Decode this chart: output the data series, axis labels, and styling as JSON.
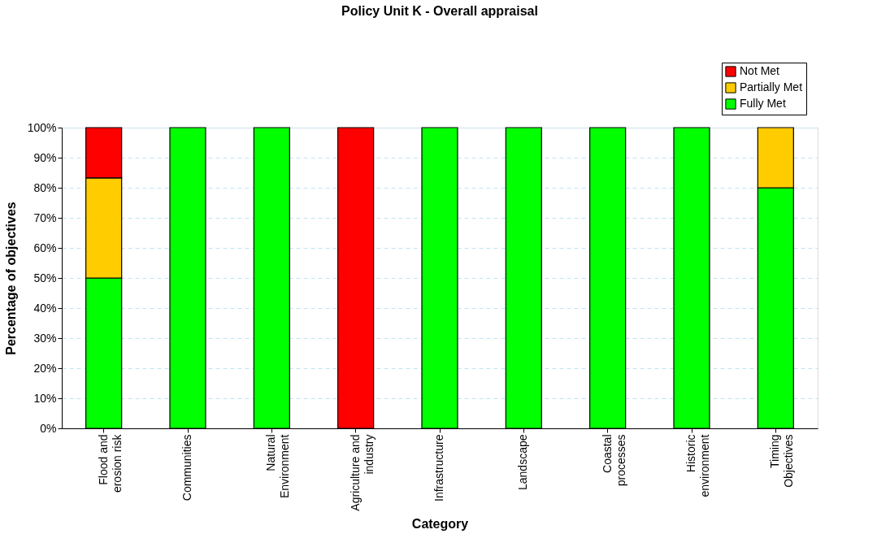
{
  "chart_data": {
    "type": "bar",
    "stacked": true,
    "title": "Policy Unit K - Overall appraisal",
    "xlabel": "Category",
    "ylabel": "Percentage of objectives",
    "categories": [
      "Flood and\nerosion risk",
      "Communities",
      "Natural\nEnvironment",
      "Agriculture and\nindustry",
      "Infrastructure",
      "Landscape",
      "Coastal\nprocesses",
      "Historic\nenvironment",
      "Timing\nObjectives"
    ],
    "series": [
      {
        "name": "Fully Met",
        "color": "#00ff00",
        "values": [
          50,
          100,
          100,
          0,
          100,
          100,
          100,
          100,
          80
        ]
      },
      {
        "name": "Partially Met",
        "color": "#ffcc00",
        "values": [
          33.3,
          0,
          0,
          0,
          0,
          0,
          0,
          0,
          20
        ]
      },
      {
        "name": "Not Met",
        "color": "#ff0000",
        "values": [
          16.7,
          0,
          0,
          100,
          0,
          0,
          0,
          0,
          0
        ]
      }
    ],
    "ylim": [
      0,
      100
    ],
    "yticks": [
      {
        "value": 0,
        "label": "0%"
      },
      {
        "value": 10,
        "label": "10%"
      },
      {
        "value": 20,
        "label": "20%"
      },
      {
        "value": 30,
        "label": "30%"
      },
      {
        "value": 40,
        "label": "40%"
      },
      {
        "value": 50,
        "label": "50%"
      },
      {
        "value": 60,
        "label": "60%"
      },
      {
        "value": 70,
        "label": "70%"
      },
      {
        "value": 80,
        "label": "80%"
      },
      {
        "value": 90,
        "label": "90%"
      },
      {
        "value": 100,
        "label": "100%"
      }
    ],
    "grid": "y",
    "legend": "top right"
  }
}
